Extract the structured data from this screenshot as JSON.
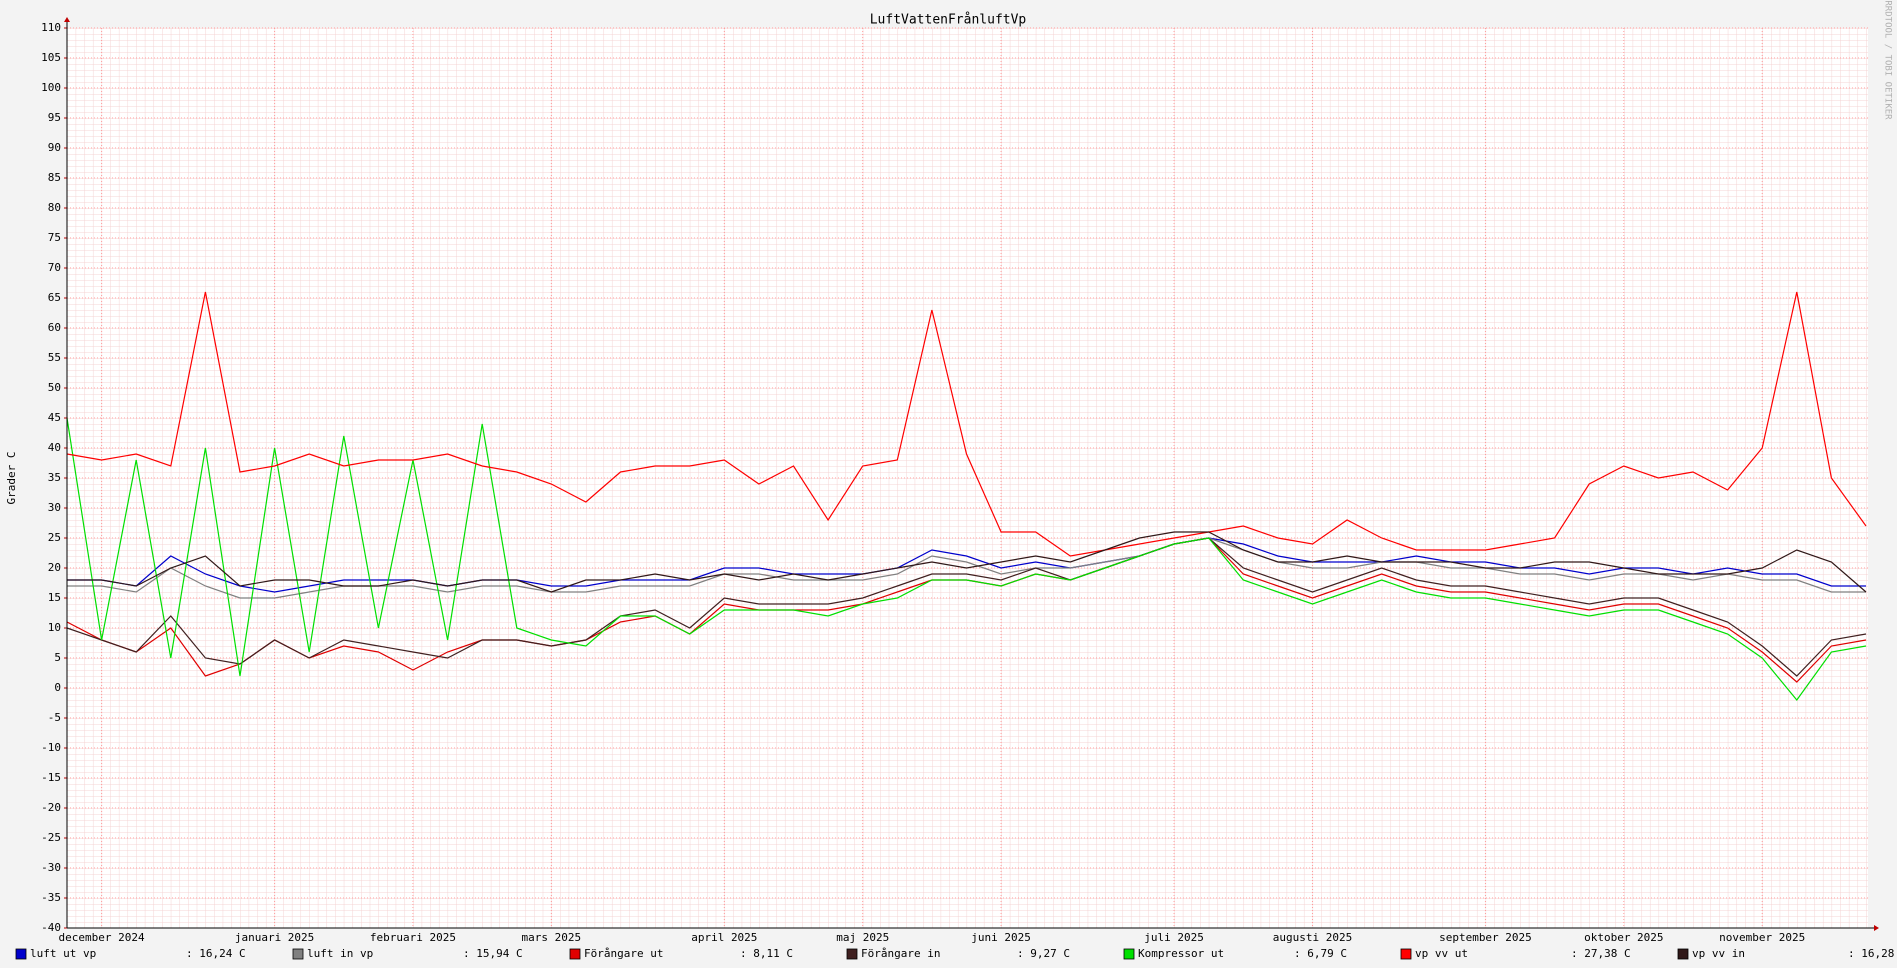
{
  "chart_data": {
    "type": "line",
    "title": "LuftVattenFrånluftVp",
    "ylabel": "Grader C",
    "watermark": "RRDTOOL / TOBI OETIKER",
    "categories": [
      null,
      "december 2024",
      null,
      null,
      null,
      null,
      "januari 2025",
      null,
      null,
      null,
      "februari 2025",
      null,
      null,
      null,
      "mars 2025",
      null,
      null,
      null,
      null,
      "april 2025",
      null,
      null,
      null,
      "maj 2025",
      null,
      null,
      null,
      "juni 2025",
      null,
      null,
      null,
      null,
      "juli 2025",
      null,
      null,
      null,
      "augusti 2025",
      null,
      null,
      null,
      null,
      "september 2025",
      null,
      null,
      null,
      "oktober 2025",
      null,
      null,
      null,
      "november 2025",
      null,
      null,
      null
    ],
    "ylim": [
      -40,
      110
    ],
    "yticks": [
      -40,
      -35,
      -30,
      -25,
      -20,
      -15,
      -10,
      -5,
      0,
      5,
      10,
      15,
      20,
      25,
      30,
      35,
      40,
      45,
      50,
      55,
      60,
      65,
      70,
      75,
      80,
      85,
      90,
      95,
      100,
      105,
      110
    ],
    "grid": true,
    "series": [
      {
        "name": "luft ut vp",
        "color": "#0000cc",
        "legend_value": ": 16,24 C",
        "values": [
          18,
          18,
          17,
          22,
          19,
          17,
          16,
          17,
          18,
          18,
          18,
          17,
          18,
          18,
          17,
          17,
          18,
          18,
          18,
          20,
          20,
          19,
          19,
          19,
          20,
          23,
          22,
          20,
          21,
          20,
          21,
          22,
          24,
          25,
          24,
          22,
          21,
          21,
          21,
          22,
          21,
          21,
          20,
          20,
          19,
          20,
          20,
          19,
          20,
          19,
          19,
          17,
          17
        ]
      },
      {
        "name": "luft in vp",
        "color": "#808080",
        "legend_value": ": 15,94 C",
        "values": [
          17,
          17,
          16,
          20,
          17,
          15,
          15,
          16,
          17,
          17,
          17,
          16,
          17,
          17,
          16,
          16,
          17,
          17,
          17,
          19,
          19,
          18,
          18,
          18,
          19,
          22,
          21,
          19,
          20,
          20,
          21,
          22,
          24,
          25,
          23,
          21,
          20,
          20,
          21,
          21,
          20,
          20,
          19,
          19,
          18,
          19,
          19,
          18,
          19,
          18,
          18,
          16,
          16
        ]
      },
      {
        "name": "Förångare ut",
        "color": "#e00000",
        "legend_value": ": 8,11 C",
        "values": [
          11,
          8,
          6,
          10,
          2,
          4,
          8,
          5,
          7,
          6,
          3,
          6,
          8,
          8,
          7,
          8,
          11,
          12,
          9,
          14,
          13,
          13,
          13,
          14,
          16,
          18,
          18,
          17,
          19,
          18,
          20,
          22,
          24,
          25,
          19,
          17,
          15,
          17,
          19,
          17,
          16,
          16,
          15,
          14,
          13,
          14,
          14,
          12,
          10,
          6,
          1,
          7,
          8
        ]
      },
      {
        "name": "Förångare in",
        "color": "#402020",
        "legend_value": ": 9,27 C",
        "values": [
          10,
          8,
          6,
          12,
          5,
          4,
          8,
          5,
          8,
          7,
          6,
          5,
          8,
          8,
          7,
          8,
          12,
          13,
          10,
          15,
          14,
          14,
          14,
          15,
          17,
          19,
          19,
          18,
          20,
          18,
          20,
          22,
          24,
          25,
          20,
          18,
          16,
          18,
          20,
          18,
          17,
          17,
          16,
          15,
          14,
          15,
          15,
          13,
          11,
          7,
          2,
          8,
          9
        ]
      },
      {
        "name": "Kompressor ut",
        "color": "#00e000",
        "legend_value": ": 6,79 C",
        "values": [
          45,
          8,
          38,
          5,
          40,
          2,
          40,
          6,
          42,
          10,
          38,
          8,
          44,
          10,
          8,
          7,
          12,
          12,
          9,
          13,
          13,
          13,
          12,
          14,
          15,
          18,
          18,
          17,
          19,
          18,
          20,
          22,
          24,
          25,
          18,
          16,
          14,
          16,
          18,
          16,
          15,
          15,
          14,
          13,
          12,
          13,
          13,
          11,
          9,
          5,
          -2,
          6,
          7
        ]
      },
      {
        "name": "vp vv ut",
        "color": "#ff0000",
        "legend_value": ": 27,38 C",
        "values": [
          39,
          38,
          39,
          37,
          66,
          36,
          37,
          39,
          37,
          38,
          38,
          39,
          37,
          36,
          34,
          31,
          36,
          37,
          37,
          38,
          34,
          37,
          28,
          37,
          38,
          63,
          39,
          26,
          26,
          22,
          23,
          24,
          25,
          26,
          27,
          25,
          24,
          28,
          25,
          23,
          23,
          23,
          24,
          25,
          34,
          37,
          35,
          36,
          33,
          40,
          66,
          35,
          27
        ]
      },
      {
        "name": "vp vv in",
        "color": "#301818",
        "legend_value": ": 16,28 C",
        "values": [
          18,
          18,
          17,
          20,
          22,
          17,
          18,
          18,
          17,
          17,
          18,
          17,
          18,
          18,
          16,
          18,
          18,
          19,
          18,
          19,
          18,
          19,
          18,
          19,
          20,
          21,
          20,
          21,
          22,
          21,
          23,
          25,
          26,
          26,
          23,
          21,
          21,
          22,
          21,
          21,
          21,
          20,
          20,
          21,
          21,
          20,
          19,
          19,
          19,
          20,
          23,
          21,
          16
        ]
      }
    ]
  }
}
